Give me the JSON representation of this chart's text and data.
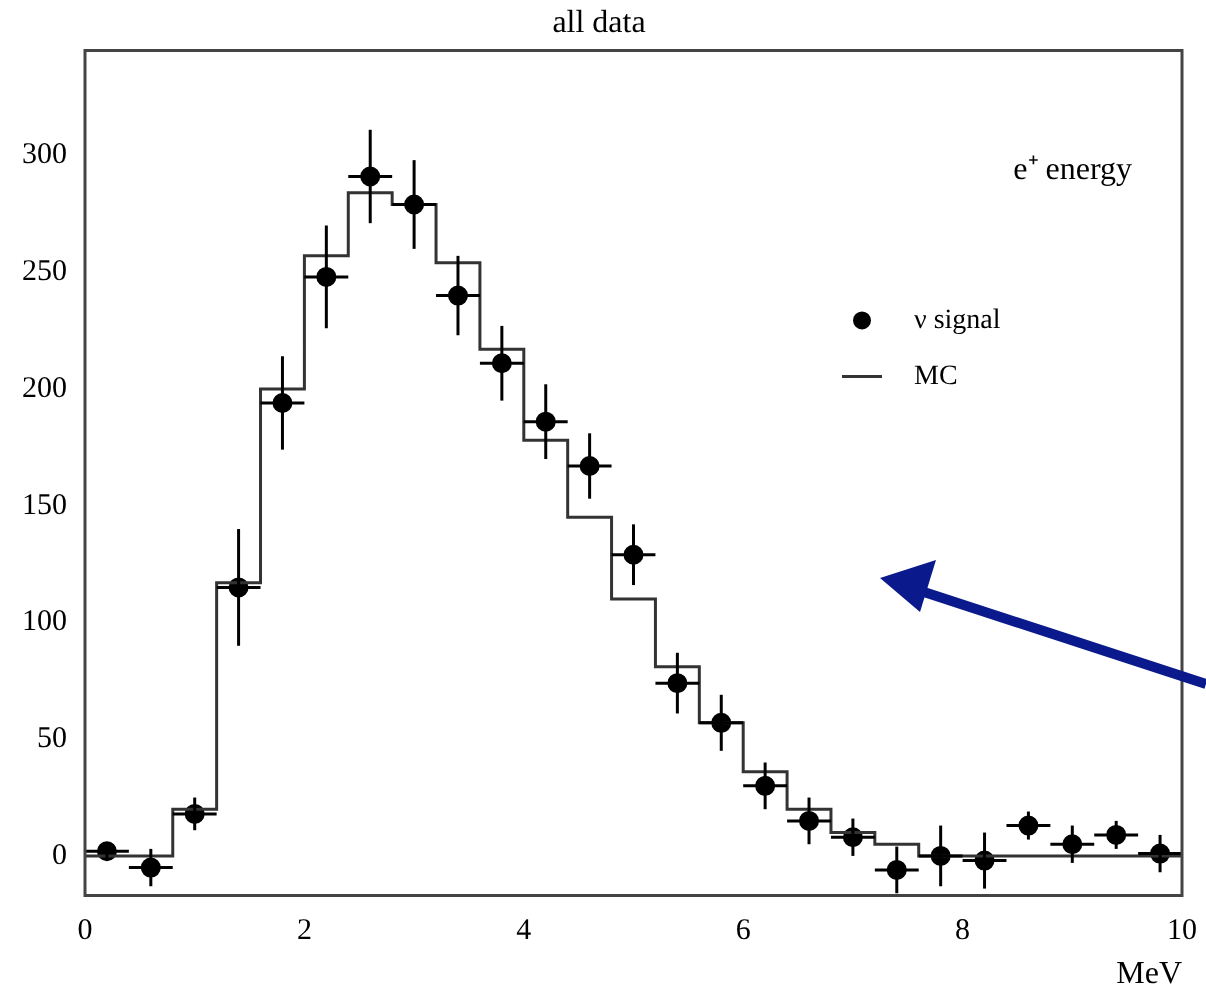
{
  "chart_data": {
    "type": "histogram",
    "title": "all data",
    "xlabel": "MeV",
    "annotations": [
      "e⁺ energy"
    ],
    "bins": [
      0,
      0.4,
      0.8,
      1.2,
      1.6,
      2.0,
      2.4,
      2.8,
      3.2,
      3.6,
      4.0,
      4.4,
      4.8,
      5.2,
      5.6,
      6.0,
      6.4,
      6.8,
      7.2,
      7.6,
      8.0,
      8.4,
      8.8,
      9.2,
      9.6,
      10
    ],
    "xlim": [
      0,
      10
    ],
    "xticks": [
      0,
      2,
      4,
      6,
      8,
      10
    ],
    "ylim": [
      -17,
      345
    ],
    "yticks": [
      0,
      50,
      100,
      150,
      200,
      250,
      300
    ],
    "grid": false,
    "legend": "right",
    "series": [
      {
        "name": "MC",
        "type": "histogram",
        "color": "#333333",
        "values": [
          0,
          0,
          20,
          117,
          200,
          257,
          284,
          279,
          254,
          217,
          178,
          145,
          110,
          81,
          57,
          36,
          20,
          10,
          5,
          0,
          0,
          0,
          0,
          0,
          0
        ]
      },
      {
        "name": "ν signal",
        "type": "scatter",
        "color": "#000000",
        "marker": "circle",
        "x": [
          0.2,
          0.6,
          1.0,
          1.4,
          1.8,
          2.2,
          2.6,
          3.0,
          3.4,
          3.8,
          4.2,
          4.6,
          5.0,
          5.4,
          5.8,
          6.2,
          6.6,
          7.0,
          7.4,
          7.8,
          8.2,
          8.6,
          9.0,
          9.4,
          9.8
        ],
        "values": [
          2,
          -5,
          18,
          115,
          194,
          248,
          291,
          279,
          240,
          211,
          186,
          167,
          129,
          74,
          57,
          30,
          15,
          8,
          -6,
          0,
          -2,
          13,
          5,
          9,
          1
        ],
        "errors": [
          3,
          8,
          7,
          25,
          20,
          22,
          20,
          19,
          17,
          16,
          16,
          14,
          13,
          13,
          12,
          10,
          10,
          8,
          10,
          13,
          12,
          6,
          8,
          6,
          8
        ],
        "xerrors": [
          0.2,
          0.2,
          0.2,
          0.2,
          0.2,
          0.2,
          0.2,
          0.2,
          0.2,
          0.2,
          0.2,
          0.2,
          0.2,
          0.2,
          0.2,
          0.2,
          0.2,
          0.2,
          0.2,
          0.2,
          0.2,
          0.2,
          0.2,
          0.2,
          0.2
        ]
      }
    ]
  }
}
